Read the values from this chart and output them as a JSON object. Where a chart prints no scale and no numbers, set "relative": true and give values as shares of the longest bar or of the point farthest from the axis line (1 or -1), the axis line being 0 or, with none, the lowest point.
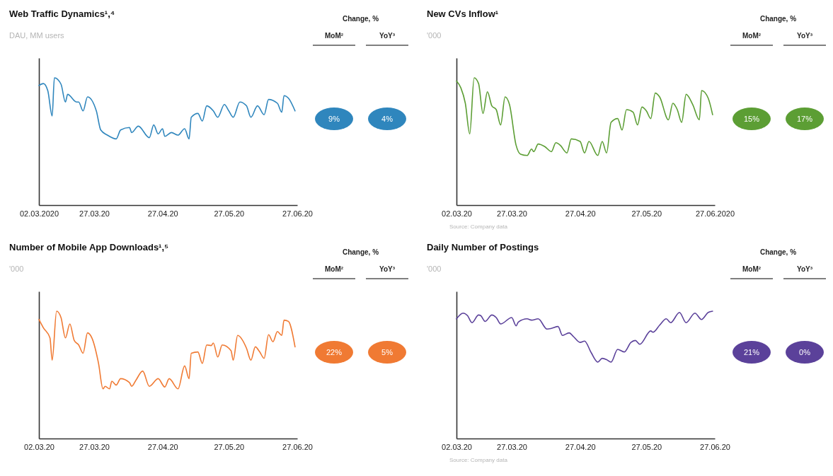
{
  "chart_data": [
    {
      "type": "line",
      "title": "Web Traffic Dynamics¹,⁴",
      "subtitle": "DAU, MM users",
      "relative": true,
      "xlim": [
        "2020-03-02",
        "2020-06-27"
      ],
      "xticks": [
        {
          "value": "2020-03-02",
          "label": "02.03.2020"
        },
        {
          "value": "2020-03-27",
          "label": "27.03.20"
        },
        {
          "value": "2020-04-27",
          "label": "27.04.20"
        },
        {
          "value": "2020-05-27",
          "label": "27.05.20"
        },
        {
          "value": "2020-06-27",
          "label": "27.06.20"
        }
      ],
      "annotations": [
        "Change, %",
        "MoM²",
        "YoY³",
        "9%",
        "4%"
      ],
      "series": [
        {
          "color": "#2f86bd",
          "x": [
            "2020-03-02",
            "2020-03-04",
            "2020-03-06",
            "2020-03-08",
            "2020-03-09",
            "2020-03-12",
            "2020-03-14",
            "2020-03-15",
            "2020-03-19",
            "2020-03-20",
            "2020-03-22",
            "2020-03-24",
            "2020-03-28",
            "2020-03-30",
            "2020-04-02",
            "2020-04-06",
            "2020-04-08",
            "2020-04-12",
            "2020-04-13",
            "2020-04-16",
            "2020-04-21",
            "2020-04-23",
            "2020-04-25",
            "2020-04-27",
            "2020-04-28",
            "2020-05-01",
            "2020-05-04",
            "2020-05-07",
            "2020-05-09",
            "2020-05-10",
            "2020-05-13",
            "2020-05-15",
            "2020-05-17",
            "2020-05-20",
            "2020-05-22",
            "2020-05-25",
            "2020-05-27",
            "2020-05-29",
            "2020-06-01",
            "2020-06-04",
            "2020-06-06",
            "2020-06-09",
            "2020-06-12",
            "2020-06-14",
            "2020-06-18",
            "2020-06-20",
            "2020-06-21",
            "2020-06-23",
            "2020-06-26"
          ],
          "values": [
            0.94,
            0.955,
            0.9,
            0.7,
            1.0,
            0.95,
            0.81,
            0.87,
            0.81,
            0.81,
            0.74,
            0.85,
            0.74,
            0.59,
            0.55,
            0.52,
            0.59,
            0.61,
            0.57,
            0.62,
            0.53,
            0.63,
            0.56,
            0.6,
            0.54,
            0.57,
            0.55,
            0.6,
            0.52,
            0.69,
            0.72,
            0.66,
            0.78,
            0.74,
            0.69,
            0.79,
            0.74,
            0.69,
            0.81,
            0.78,
            0.69,
            0.78,
            0.71,
            0.83,
            0.8,
            0.73,
            0.86,
            0.84,
            0.74
          ]
        }
      ]
    },
    {
      "type": "line",
      "title": "New CVs Inflow¹",
      "subtitle": "'000",
      "relative": true,
      "xlim": [
        "2020-03-02",
        "2020-06-27"
      ],
      "xticks": [
        {
          "value": "2020-03-02",
          "label": "02.03.20"
        },
        {
          "value": "2020-03-27",
          "label": "27.03.20"
        },
        {
          "value": "2020-04-27",
          "label": "27.04.20"
        },
        {
          "value": "2020-05-27",
          "label": "27.05.20"
        },
        {
          "value": "2020-06-27",
          "label": "27.06.2020"
        }
      ],
      "annotations": [
        "Change, %",
        "MoM²",
        "YoY³",
        "15%",
        "17%",
        "Source: Company data"
      ],
      "series": [
        {
          "color": "#5c9e34",
          "x": [
            "2020-03-02",
            "2020-03-04",
            "2020-03-06",
            "2020-03-08",
            "2020-03-10",
            "2020-03-12",
            "2020-03-14",
            "2020-03-16",
            "2020-03-18",
            "2020-03-20",
            "2020-03-22",
            "2020-03-24",
            "2020-03-26",
            "2020-03-29",
            "2020-03-31",
            "2020-04-03",
            "2020-04-05",
            "2020-04-06",
            "2020-04-08",
            "2020-04-11",
            "2020-04-14",
            "2020-04-16",
            "2020-04-18",
            "2020-04-21",
            "2020-04-23",
            "2020-04-27",
            "2020-04-29",
            "2020-05-01",
            "2020-05-05",
            "2020-05-07",
            "2020-05-09",
            "2020-05-11",
            "2020-05-14",
            "2020-05-16",
            "2020-05-18",
            "2020-05-21",
            "2020-05-23",
            "2020-05-25",
            "2020-05-27",
            "2020-05-29",
            "2020-05-31",
            "2020-06-02",
            "2020-06-06",
            "2020-06-08",
            "2020-06-10",
            "2020-06-12",
            "2020-06-14",
            "2020-06-17",
            "2020-06-20",
            "2020-06-21",
            "2020-06-24",
            "2020-06-26"
          ],
          "values": [
            0.975,
            0.92,
            0.8,
            0.56,
            1.0,
            0.955,
            0.72,
            0.89,
            0.78,
            0.75,
            0.63,
            0.85,
            0.79,
            0.47,
            0.4,
            0.39,
            0.44,
            0.42,
            0.48,
            0.46,
            0.42,
            0.49,
            0.47,
            0.41,
            0.52,
            0.5,
            0.41,
            0.5,
            0.39,
            0.5,
            0.41,
            0.65,
            0.68,
            0.59,
            0.75,
            0.73,
            0.63,
            0.77,
            0.74,
            0.68,
            0.88,
            0.85,
            0.67,
            0.8,
            0.75,
            0.65,
            0.87,
            0.79,
            0.67,
            0.9,
            0.84,
            0.71
          ]
        }
      ]
    },
    {
      "type": "line",
      "title": "Number of Mobile App Downloads¹,⁵",
      "subtitle": "'000",
      "relative": true,
      "xlim": [
        "2020-03-02",
        "2020-06-27"
      ],
      "xticks": [
        {
          "value": "2020-03-02",
          "label": "02.03.20"
        },
        {
          "value": "2020-03-27",
          "label": "27.03.20"
        },
        {
          "value": "2020-04-27",
          "label": "27.04.20"
        },
        {
          "value": "2020-05-27",
          "label": "27.05.20"
        },
        {
          "value": "2020-06-27",
          "label": "27.06.20"
        }
      ],
      "annotations": [
        "Change, %",
        "MoM²",
        "YoY³",
        "22%",
        "5%"
      ],
      "series": [
        {
          "color": "#f07a33",
          "x": [
            "2020-03-02",
            "2020-03-04",
            "2020-03-07",
            "2020-03-08",
            "2020-03-10",
            "2020-03-12",
            "2020-03-14",
            "2020-03-16",
            "2020-03-18",
            "2020-03-20",
            "2020-03-22",
            "2020-03-24",
            "2020-03-26",
            "2020-03-29",
            "2020-03-31",
            "2020-04-01",
            "2020-04-03",
            "2020-04-04",
            "2020-04-06",
            "2020-04-08",
            "2020-04-12",
            "2020-04-13",
            "2020-04-15",
            "2020-04-18",
            "2020-04-21",
            "2020-04-25",
            "2020-04-28",
            "2020-04-30",
            "2020-05-04",
            "2020-05-07",
            "2020-05-09",
            "2020-05-10",
            "2020-05-13",
            "2020-05-15",
            "2020-05-17",
            "2020-05-19",
            "2020-05-20",
            "2020-05-22",
            "2020-05-24",
            "2020-05-28",
            "2020-05-29",
            "2020-05-31",
            "2020-06-04",
            "2020-06-06",
            "2020-06-08",
            "2020-06-10",
            "2020-06-12",
            "2020-06-14",
            "2020-06-16",
            "2020-06-18",
            "2020-06-20",
            "2020-06-21",
            "2020-06-23",
            "2020-06-26"
          ],
          "values": [
            0.935,
            0.87,
            0.79,
            0.615,
            1.0,
            0.95,
            0.79,
            0.9,
            0.77,
            0.735,
            0.67,
            0.83,
            0.79,
            0.59,
            0.39,
            0.41,
            0.39,
            0.45,
            0.42,
            0.47,
            0.44,
            0.41,
            0.46,
            0.53,
            0.41,
            0.47,
            0.405,
            0.47,
            0.39,
            0.57,
            0.47,
            0.67,
            0.68,
            0.59,
            0.735,
            0.73,
            0.75,
            0.64,
            0.735,
            0.69,
            0.615,
            0.81,
            0.71,
            0.615,
            0.72,
            0.68,
            0.63,
            0.815,
            0.76,
            0.84,
            0.81,
            0.93,
            0.92,
            0.72
          ]
        }
      ]
    },
    {
      "type": "line",
      "title": "Daily Number of Postings",
      "subtitle": "'000",
      "relative": true,
      "xlim": [
        "2020-03-02",
        "2020-06-27"
      ],
      "xticks": [
        {
          "value": "2020-03-02",
          "label": "02.03.20"
        },
        {
          "value": "2020-03-27",
          "label": "27.03.20"
        },
        {
          "value": "2020-04-27",
          "label": "27.04.20"
        },
        {
          "value": "2020-05-27",
          "label": "27.05.20"
        },
        {
          "value": "2020-06-27",
          "label": "27.06.20"
        }
      ],
      "annotations": [
        "Change, %",
        "MoM²",
        "YoY³",
        "21%",
        "0%",
        "Source: Company data"
      ],
      "series": [
        {
          "color": "#5b419a",
          "x": [
            "2020-03-02",
            "2020-03-05",
            "2020-03-07",
            "2020-03-09",
            "2020-03-12",
            "2020-03-13",
            "2020-03-15",
            "2020-03-18",
            "2020-03-20",
            "2020-03-22",
            "2020-03-27",
            "2020-03-29",
            "2020-03-30",
            "2020-04-03",
            "2020-04-05",
            "2020-04-08",
            "2020-04-12",
            "2020-04-14",
            "2020-04-17",
            "2020-04-19",
            "2020-04-22",
            "2020-04-24",
            "2020-04-27",
            "2020-04-29",
            "2020-05-02",
            "2020-05-05",
            "2020-05-07",
            "2020-05-09",
            "2020-05-11",
            "2020-05-14",
            "2020-05-17",
            "2020-05-20",
            "2020-05-22",
            "2020-05-24",
            "2020-05-29",
            "2020-05-30",
            "2020-06-02",
            "2020-06-05",
            "2020-06-07",
            "2020-06-11",
            "2020-06-14",
            "2020-06-18",
            "2020-06-21",
            "2020-06-24",
            "2020-06-26"
          ],
          "values": [
            0.94,
            0.985,
            0.965,
            0.91,
            0.97,
            0.965,
            0.92,
            0.97,
            0.95,
            0.9,
            0.95,
            0.885,
            0.915,
            0.94,
            0.93,
            0.94,
            0.86,
            0.865,
            0.88,
            0.81,
            0.83,
            0.8,
            0.755,
            0.765,
            0.675,
            0.6,
            0.63,
            0.62,
            0.6,
            0.7,
            0.68,
            0.755,
            0.77,
            0.74,
            0.845,
            0.835,
            0.89,
            0.94,
            0.91,
            0.99,
            0.91,
            0.985,
            0.935,
            0.99,
            1.0
          ]
        }
      ]
    }
  ]
}
